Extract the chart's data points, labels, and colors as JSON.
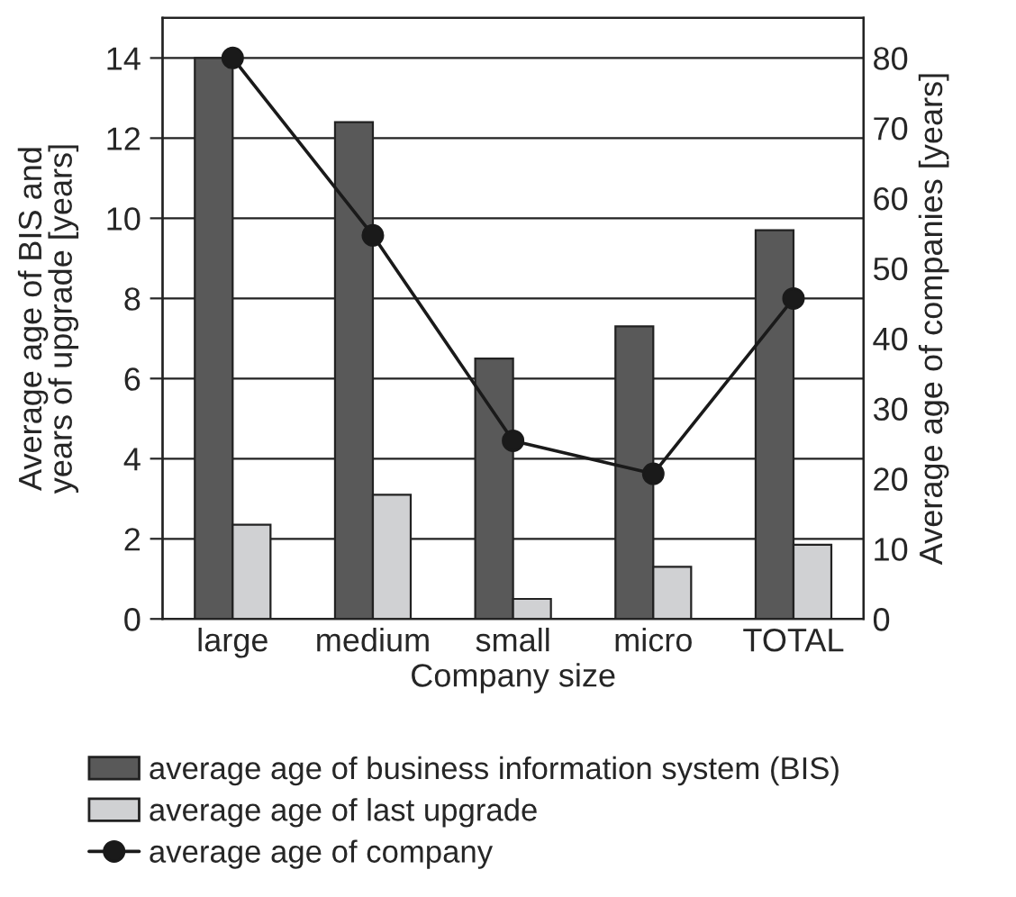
{
  "chart_data": {
    "type": "bar",
    "xlabel": "Company size",
    "ylabel": "Average age of BIS and years of upgrade [years]",
    "y2label": "Average age of companies [years]",
    "categories": [
      "large",
      "medium",
      "small",
      "micro",
      "TOTAL"
    ],
    "series": [
      {
        "name": "average age of business information system (BIS)",
        "color": "#595959",
        "values": [
          14.0,
          12.4,
          6.5,
          7.3,
          9.7
        ]
      },
      {
        "name": "average age of last upgrade",
        "color": "#d0d1d3",
        "values": [
          2.35,
          3.1,
          0.5,
          1.3,
          1.85
        ]
      },
      {
        "name": "average age of company",
        "type": "line",
        "axis": "y2",
        "color": "#1a1a1a",
        "marker": "circle",
        "values": [
          80,
          54.7,
          25.4,
          20.7,
          45.7
        ]
      }
    ],
    "ylim": [
      0,
      15
    ],
    "yticks": [
      0,
      2,
      4,
      6,
      8,
      10,
      12,
      14
    ],
    "y2lim": [
      0,
      85.7
    ],
    "y2ticks": [
      0,
      10,
      20,
      30,
      40,
      50,
      60,
      70,
      80
    ],
    "grid": "y",
    "legend": "bottom"
  }
}
